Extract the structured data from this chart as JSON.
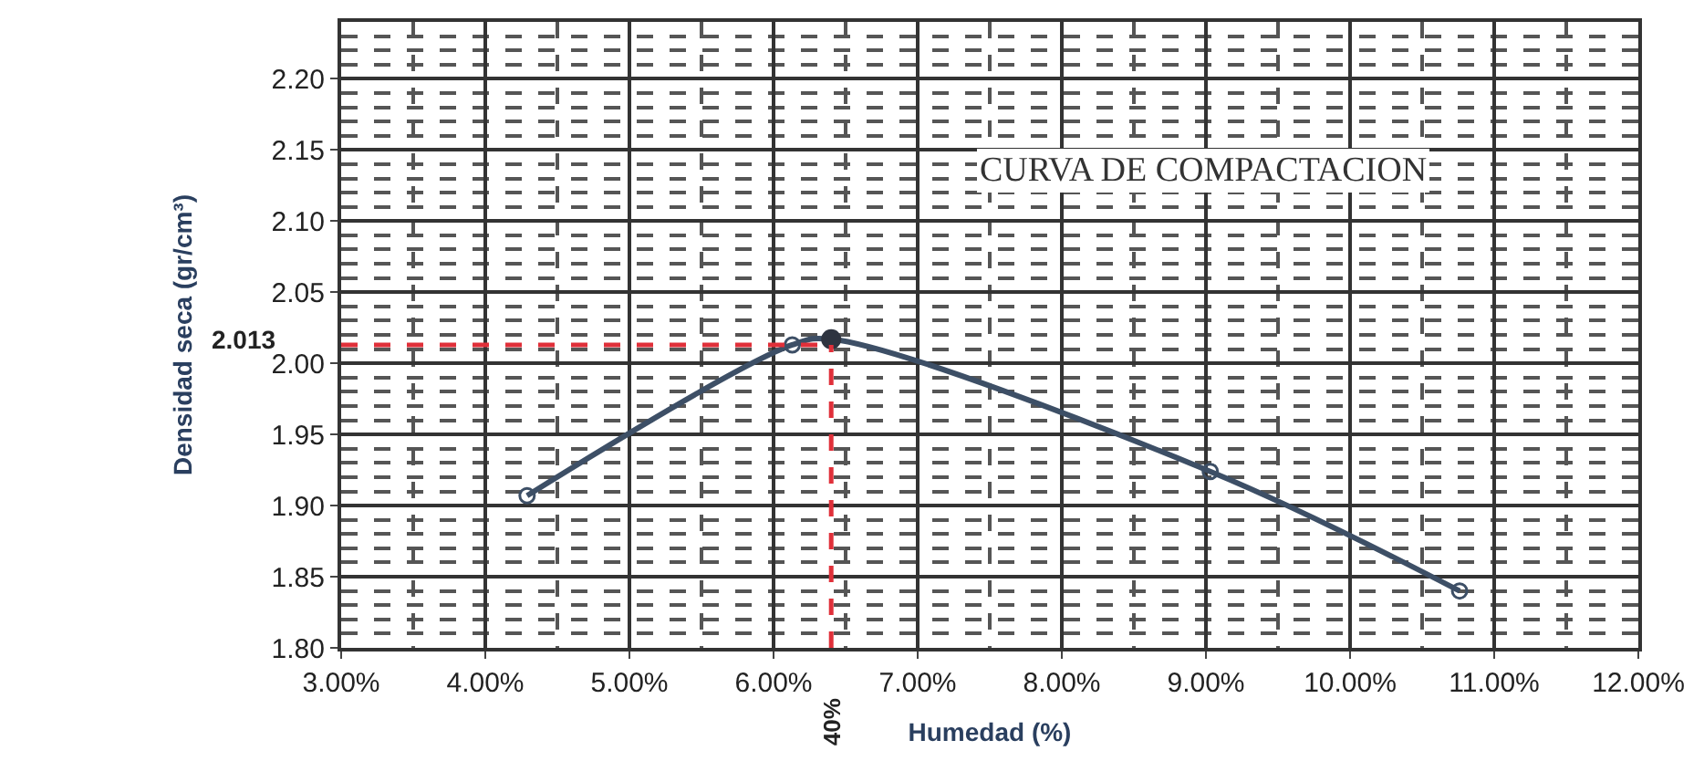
{
  "chart_data": {
    "type": "line",
    "title": "CURVA DE COMPACTACION",
    "xlabel": "Humedad (%)",
    "ylabel": "Densidad seca (gr/cm³)",
    "series": [
      {
        "color": "#3d4f66",
        "x": [
          4.29,
          6.13,
          6.4,
          9.03,
          10.76
        ],
        "values": [
          1.907,
          2.013,
          2.017,
          1.924,
          1.84
        ],
        "marker": "circle"
      },
      {
        "type": "scatter",
        "color": "#2e3440",
        "x": [
          6.4
        ],
        "values": [
          2.017
        ],
        "marker": "circle"
      }
    ],
    "xlim": [
      3,
      12
    ],
    "xticks": [
      {
        "value": 3,
        "label": "3.00%"
      },
      {
        "value": 4,
        "label": "4.00%"
      },
      {
        "value": 5,
        "label": "5.00%"
      },
      {
        "value": 6,
        "label": "6.00%"
      },
      {
        "value": 7,
        "label": "7.00%"
      },
      {
        "value": 8,
        "label": "8.00%"
      },
      {
        "value": 9,
        "label": "9.00%"
      },
      {
        "value": 10,
        "label": "10.00%"
      },
      {
        "value": 11,
        "label": "11.00%"
      },
      {
        "value": 12,
        "label": "12.00%"
      }
    ],
    "ylim": [
      1.8,
      2.24
    ],
    "yticks": [
      {
        "value": 1.8,
        "label": "1.80"
      },
      1.85,
      {
        "value": 1.9,
        "label": "1.90"
      },
      1.95,
      {
        "value": 2.0,
        "label": "2.00"
      },
      2.05,
      {
        "value": 2.1,
        "label": "2.10"
      },
      2.15,
      {
        "value": 2.2,
        "label": "2.20"
      }
    ],
    "ref_lines": [
      {
        "axis": "y",
        "value": 2.013,
        "label": "2.013",
        "color": "#e0303a",
        "line_style": "dashed"
      },
      {
        "axis": "x",
        "value": 6.4,
        "color": "#e0303a",
        "line_style": "dashed"
      }
    ],
    "annotations": [
      {
        "text": "40%",
        "x": 6.4,
        "y": 1.8
      }
    ],
    "grid": true
  }
}
